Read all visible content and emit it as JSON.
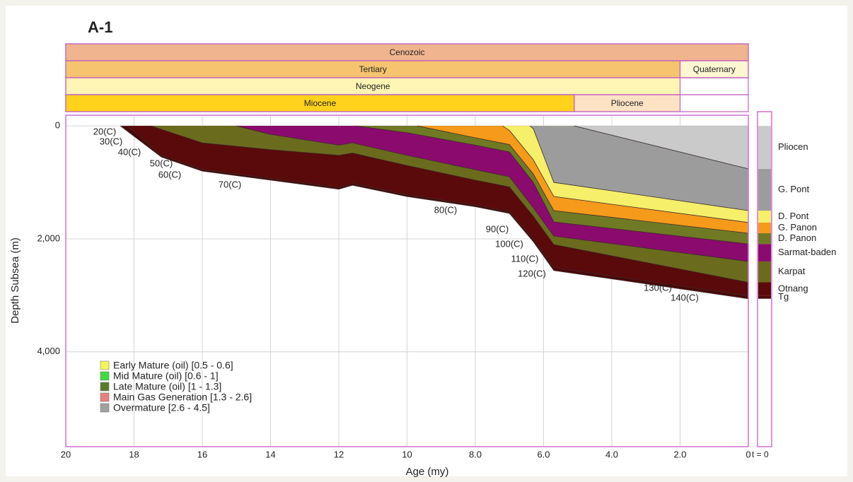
{
  "chart_data": {
    "type": "burial_history",
    "title": "A-1",
    "x_label": "Age (my)",
    "y_label": "Depth Subsea (m)",
    "xlim": [
      20,
      0
    ],
    "xticks": [
      20,
      18,
      16,
      14,
      12,
      10,
      {
        "value": 8,
        "label": "8.0"
      },
      {
        "value": 6,
        "label": "6.0"
      },
      {
        "value": 4,
        "label": "4.0"
      },
      {
        "value": 2,
        "label": "2.0"
      },
      0
    ],
    "ylim": [
      -190,
      5680
    ],
    "y_inverted": true,
    "yticks": [
      0,
      {
        "value": 2000,
        "label": "2,000"
      },
      {
        "value": 4000,
        "label": "4,000"
      }
    ],
    "grid": true,
    "time_scale": [
      [
        {
          "label": "Cenozoic",
          "start": 20,
          "end": 0,
          "color": "#f0b48e"
        }
      ],
      [
        {
          "label": "Tertiary",
          "start": 20,
          "end": 2,
          "color": "#f6c46e"
        },
        {
          "label": "Quaternary",
          "start": 2,
          "end": 0,
          "color": "#fff6d2"
        }
      ],
      [
        {
          "label": "Neogene",
          "start": 20,
          "end": 2,
          "color": "#fff5b4"
        }
      ],
      [
        {
          "label": "Miocene",
          "start": 20,
          "end": 5.1,
          "color": "#ffd21c"
        },
        {
          "label": "Pliocene",
          "start": 5.1,
          "end": 2,
          "color": "#fde2c4"
        }
      ]
    ],
    "series": [
      {
        "name": "Tg",
        "color": "#4a0808",
        "x": [
          18.4,
          17.2,
          16,
          14,
          12,
          11.6,
          10,
          8,
          7,
          6.3,
          5.7,
          0
        ],
        "values": [
          0,
          550,
          800,
          960,
          1120,
          1050,
          1250,
          1430,
          1550,
          2050,
          2560,
          3060
        ]
      },
      {
        "name": "Otnang",
        "color": "#5a0a0a",
        "x": [
          18.2,
          17.2,
          16,
          14,
          12,
          11.6,
          10,
          8,
          7,
          6.3,
          5.7,
          0
        ],
        "values": [
          0,
          520,
          770,
          930,
          1090,
          1020,
          1220,
          1400,
          1520,
          2010,
          2510,
          3010
        ]
      },
      {
        "name": "Karpat",
        "color": "#6b6b1e",
        "x": [
          17.5,
          16,
          14,
          12,
          11.6,
          10,
          8,
          7,
          6.3,
          5.7,
          0
        ],
        "values": [
          0,
          300,
          420,
          520,
          480,
          700,
          960,
          1080,
          1600,
          2100,
          2770
        ]
      },
      {
        "name": "Sarmat-baden",
        "color": "#8b0a6e",
        "x": [
          15,
          14,
          12,
          11.6,
          10,
          8,
          7,
          6.3,
          5.7,
          0
        ],
        "values": [
          0,
          150,
          340,
          300,
          520,
          775,
          900,
          1450,
          1950,
          2400
        ]
      },
      {
        "name": "D. Panon",
        "color": "#707a24",
        "x": [
          11.5,
          10,
          8,
          7,
          6.3,
          5.7,
          0
        ],
        "values": [
          0,
          120,
          340,
          460,
          1000,
          1700,
          2090
        ]
      },
      {
        "name": "G. Panon",
        "color": "#f59a1b",
        "x": [
          9.7,
          8,
          7,
          6.3,
          5.7,
          0
        ],
        "values": [
          0,
          210,
          330,
          850,
          1500,
          1900
        ]
      },
      {
        "name": "D. Pont",
        "color": "#f5ef6a",
        "x": [
          7.2,
          7,
          6.3,
          5.7,
          0
        ],
        "values": [
          0,
          80,
          600,
          1250,
          1710
        ]
      },
      {
        "name": "G. Pont",
        "color": "#9c9c9c",
        "x": [
          6.4,
          6.3,
          5.7,
          0
        ],
        "values": [
          0,
          50,
          1000,
          1500
        ]
      },
      {
        "name": "Pliocen",
        "color": "#cacaca",
        "x": [
          5.1,
          0
        ],
        "values": [
          0,
          760
        ]
      }
    ],
    "isotherm_labels": [
      "20(C)",
      "30(C)",
      "40(C)",
      "50(C)",
      "60(C)",
      "70(C)",
      "80(C)",
      "90(C)",
      "100(C)",
      "110(C)",
      "120(C)",
      "130(C)",
      "140(C)"
    ],
    "legend": {
      "position": "lower left",
      "entries": [
        {
          "name": "Early Mature (oil) [0.5 - 0.6]",
          "color": "#f5f55a"
        },
        {
          "name": "Mid Mature (oil) [0.6 - 1]",
          "color": "#3ddc3d"
        },
        {
          "name": "Late Mature (oil) [1 - 1.3]",
          "color": "#5a7a2a"
        },
        {
          "name": "Main Gas Generation [1.3 - 2.6]",
          "color": "#e88080"
        },
        {
          "name": "Overmature [2.6 - 4.5]",
          "color": "#a0a0a0"
        }
      ]
    },
    "present_day_label": "t = 0"
  }
}
